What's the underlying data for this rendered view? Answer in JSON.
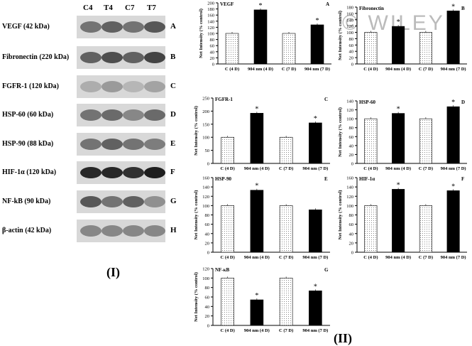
{
  "panel_I": {
    "label": "(I)",
    "lanes": [
      "C4",
      "T4",
      "C7",
      "T7"
    ],
    "blots": [
      {
        "label": "VEGF (42 kDa)",
        "letter": "A",
        "intensity": [
          0.55,
          0.65,
          0.55,
          0.7
        ]
      },
      {
        "label": "Fibronectin (220 kDa)",
        "letter": "B",
        "intensity": [
          0.65,
          0.75,
          0.65,
          0.8
        ]
      },
      {
        "label": "FGFR-1 (120 kDa)",
        "letter": "C",
        "intensity": [
          0.25,
          0.35,
          0.2,
          0.3
        ]
      },
      {
        "label": "HSP-60 (60 kDa)",
        "letter": "D",
        "intensity": [
          0.55,
          0.6,
          0.45,
          0.6
        ]
      },
      {
        "label": "HSP-90 (88 kDa)",
        "letter": "E",
        "intensity": [
          0.55,
          0.65,
          0.55,
          0.5
        ]
      },
      {
        "label": "HIF-1α (120 kDa)",
        "letter": "F",
        "intensity": [
          0.95,
          0.95,
          0.9,
          1.0
        ]
      },
      {
        "label": "NF-kB (90 kDa)",
        "letter": "G",
        "intensity": [
          0.7,
          0.55,
          0.65,
          0.4
        ]
      },
      {
        "label": "β-actin (42 kDa)",
        "letter": "H",
        "intensity": [
          0.45,
          0.45,
          0.45,
          0.45
        ]
      }
    ]
  },
  "panel_II": {
    "label": "(II)"
  },
  "watermark": "© WILEY",
  "chart_data": [
    {
      "type": "bar",
      "title": "VEGF",
      "letter": "A",
      "ylabel": "Net Intensity (% control)",
      "ylim": [
        0,
        200
      ],
      "yticks": [
        0,
        20,
        40,
        60,
        80,
        100,
        120,
        140,
        160,
        180,
        200
      ],
      "categories": [
        "C (4 D)",
        "904 nm (4 D)",
        "C (7 D)",
        "904 nm (7 D)"
      ],
      "values": [
        100,
        177,
        100,
        128
      ],
      "significant": [
        false,
        true,
        false,
        true
      ]
    },
    {
      "type": "bar",
      "title": "Fibronectin",
      "letter": "B",
      "ylabel": "Net Intensity (% control)",
      "ylim": [
        0,
        180
      ],
      "yticks": [
        0,
        20,
        40,
        60,
        80,
        100,
        120,
        140,
        160,
        180
      ],
      "categories": [
        "C (4 D)",
        "904 nm (4 D)",
        "C (7 D)",
        "904 nm (7 D)"
      ],
      "values": [
        100,
        119,
        100,
        168
      ],
      "significant": [
        false,
        true,
        false,
        true
      ]
    },
    {
      "type": "bar",
      "title": "FGFR-1",
      "letter": "C",
      "ylabel": "Net Intensity (% control)",
      "ylim": [
        0,
        250
      ],
      "yticks": [
        0,
        50,
        100,
        150,
        200,
        250
      ],
      "categories": [
        "C (4 D)",
        "904 nm (4 D)",
        "C (7 D)",
        "904 nm (7 D)"
      ],
      "values": [
        100,
        192,
        100,
        155
      ],
      "significant": [
        false,
        true,
        false,
        true
      ]
    },
    {
      "type": "bar",
      "title": "HSP-60",
      "letter": "D",
      "ylabel": "Net Intensity (% control)",
      "ylim": [
        0,
        140
      ],
      "yticks": [
        0,
        20,
        40,
        60,
        80,
        100,
        120,
        140
      ],
      "categories": [
        "C (4 D)",
        "904 nm (4 D)",
        "C (7 D)",
        "904 nm (7 D)"
      ],
      "values": [
        100,
        112,
        100,
        127
      ],
      "significant": [
        false,
        true,
        false,
        true
      ]
    },
    {
      "type": "bar",
      "title": "HSP-90",
      "letter": "E",
      "ylabel": "Net Intensity (% control)",
      "ylim": [
        0,
        160
      ],
      "yticks": [
        0,
        20,
        40,
        60,
        80,
        100,
        120,
        140,
        160
      ],
      "categories": [
        "C (4 D)",
        "904 nm (4 D)",
        "C (7 D)",
        "904 nm (7 D)"
      ],
      "values": [
        100,
        133,
        100,
        91
      ],
      "significant": [
        false,
        true,
        false,
        false
      ]
    },
    {
      "type": "bar",
      "title": "HIF-1α",
      "letter": "F",
      "ylabel": "Net Intensity (% control)",
      "ylim": [
        0,
        160
      ],
      "yticks": [
        0,
        20,
        40,
        60,
        80,
        100,
        120,
        140,
        160
      ],
      "categories": [
        "C (4 D)",
        "904 nm (4 D)",
        "C (7 D)",
        "904 nm (7 D)"
      ],
      "values": [
        100,
        135,
        100,
        132
      ],
      "significant": [
        false,
        true,
        false,
        true
      ]
    },
    {
      "type": "bar",
      "title": "NF-κB",
      "letter": "G",
      "ylabel": "Net Intensity (% control)",
      "ylim": [
        0,
        120
      ],
      "yticks": [
        0,
        20,
        40,
        60,
        80,
        100,
        120
      ],
      "categories": [
        "C (4 D)",
        "904 nm (4 D)",
        "C (7 D)",
        "904 nm (7 D)"
      ],
      "values": [
        100,
        54,
        100,
        73
      ],
      "significant": [
        false,
        true,
        false,
        true
      ]
    }
  ]
}
